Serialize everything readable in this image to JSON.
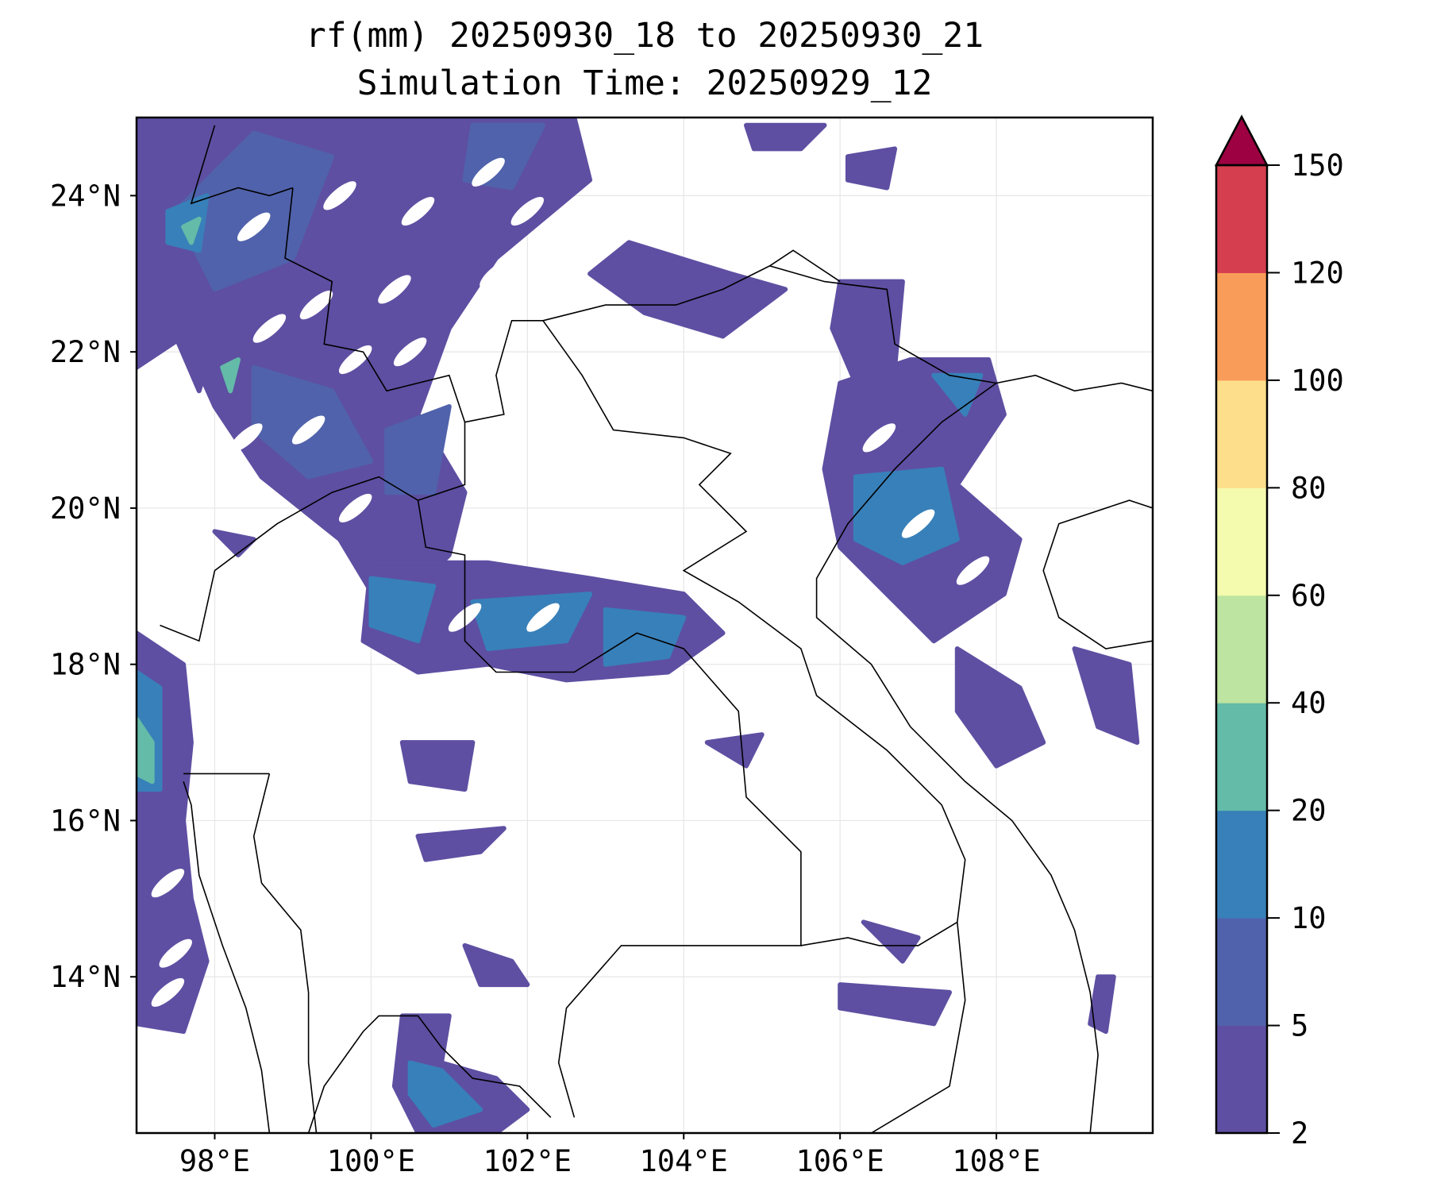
{
  "chart_data": {
    "type": "heatmap",
    "subtype": "filled-contour map",
    "title": "rf(mm) 20250930_18 to 20250930_21",
    "subtitle": "Simulation Time: 20250929_12",
    "variable": "rf(mm)",
    "xlabel": "",
    "ylabel": "",
    "xlim": [
      97,
      110
    ],
    "ylim": [
      12,
      25
    ],
    "x_ticks": [
      98,
      100,
      102,
      104,
      106,
      108
    ],
    "x_tick_labels": [
      "98°E",
      "100°E",
      "102°E",
      "104°E",
      "106°E",
      "108°E"
    ],
    "y_ticks": [
      14,
      16,
      18,
      20,
      22,
      24
    ],
    "y_tick_labels": [
      "14°N",
      "16°N",
      "18°N",
      "20°N",
      "22°N",
      "24°N"
    ],
    "grid": true,
    "colorbar": {
      "levels": [
        2,
        5,
        10,
        20,
        40,
        60,
        80,
        100,
        120,
        150
      ],
      "tick_labels": [
        "2",
        "5",
        "10",
        "20",
        "40",
        "60",
        "80",
        "100",
        "120",
        "150"
      ],
      "colors": [
        "#5e4fa2",
        "#5062ab",
        "#3880b9",
        "#63bba8",
        "#bde4a0",
        "#f4faae",
        "#fddf8b",
        "#f99c59",
        "#d43e4f"
      ],
      "extend_color": "#9e0142",
      "extend": "max",
      "placement": "right"
    },
    "observations": "Rain mostly 2-10 mm over northern Laos/Myanmar/Yunnan and northern Vietnam coast, localized 10-20 mm, a few 20-40 mm spots near 97.2E 17N and 97.5E 23.5N"
  }
}
